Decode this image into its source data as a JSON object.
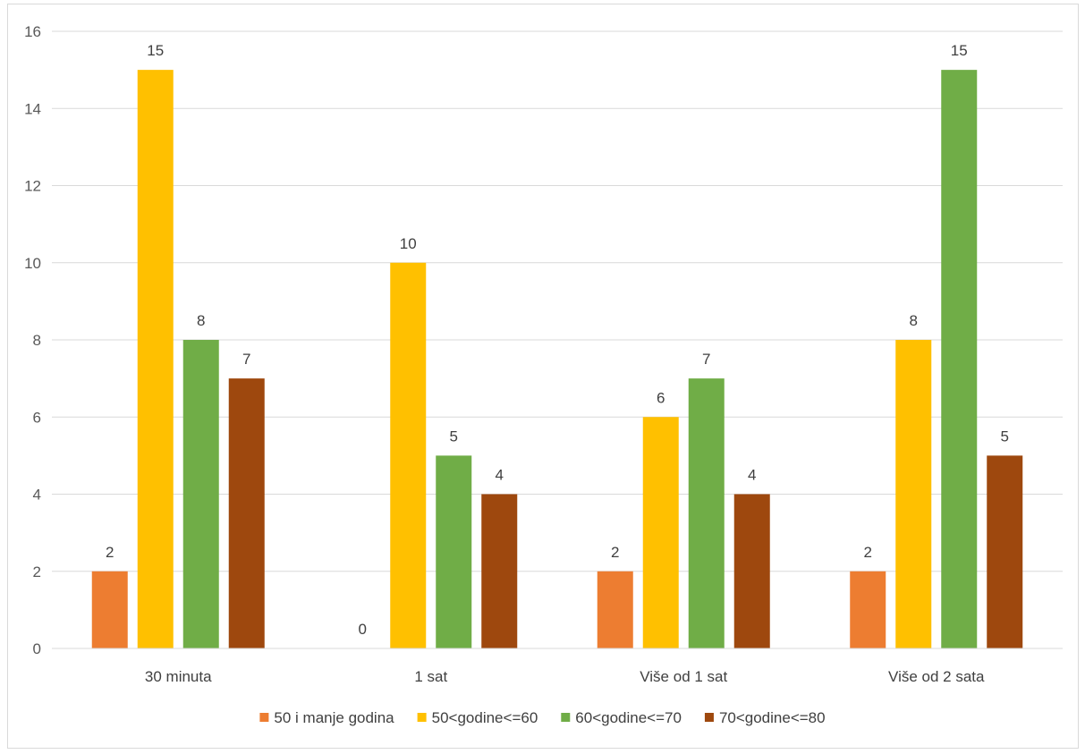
{
  "chart_data": {
    "type": "bar",
    "title": "",
    "xlabel": "",
    "ylabel": "",
    "ylim": [
      0,
      16
    ],
    "yticks": [
      0,
      2,
      4,
      6,
      8,
      10,
      12,
      14,
      16
    ],
    "grid": true,
    "legend_position": "bottom",
    "categories": [
      "30 minuta",
      "1 sat",
      "Više od 1 sat",
      "Više od 2 sata"
    ],
    "series": [
      {
        "name": "50 i manje godina",
        "color": "#ED7D31",
        "values": [
          2,
          0,
          2,
          2
        ]
      },
      {
        "name": "50<godine<=60",
        "color": "#FFC000",
        "values": [
          15,
          10,
          6,
          8
        ]
      },
      {
        "name": "60<godine<=70",
        "color": "#70AD47",
        "values": [
          8,
          5,
          7,
          15
        ]
      },
      {
        "name": "70<godine<=80",
        "color": "#9E480E",
        "values": [
          7,
          4,
          4,
          5
        ]
      }
    ]
  }
}
